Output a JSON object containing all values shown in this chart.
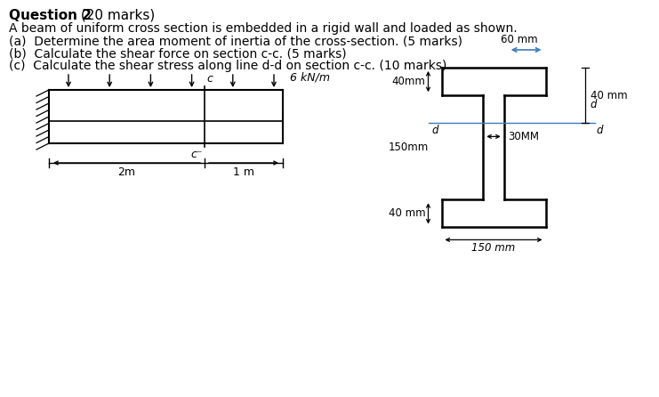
{
  "title_bold": "Question 2",
  "title_marks": " (20 marks)",
  "line1": "A beam of uniform cross section is embedded in a rigid wall and loaded as shown.",
  "line2": "(a)  Determine the area moment of inertia of the cross-section. (5 marks)",
  "line3": "(b)  Calculate the shear force on section c-c. (5 marks)",
  "line4": "(c)  Calculate the shear stress along line d-d on section c-c. (10 marks)",
  "bg_color": "#ffffff",
  "text_color": "#000000",
  "blue": "#3a7bbf",
  "load_label": "6 kN/m",
  "dim_2m": "2m",
  "dim_1m": "1 m",
  "dim_60mm": "60 mm",
  "dim_40mm_top": "40mm",
  "dim_150mm_web": "150mm",
  "dim_40mm_bot": "40 mm",
  "dim_150mm_bot": "150 mm",
  "dim_30mm": "30MM",
  "label_c_top": "c",
  "label_c_bot": "c",
  "label_d_left": "d",
  "label_d_right": "d",
  "label_40mm_right": "40 mm"
}
